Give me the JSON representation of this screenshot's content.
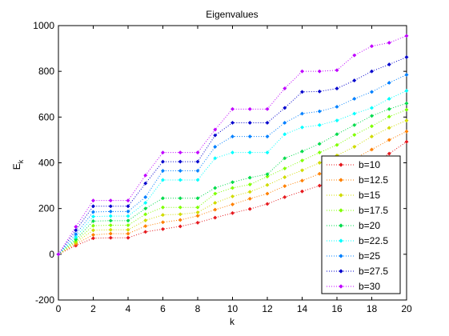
{
  "chart_data": {
    "type": "line",
    "title": "Eigenvalues",
    "xlabel": "k",
    "ylabel_main": "E",
    "ylabel_sub": "k",
    "xlim": [
      0,
      20
    ],
    "ylim": [
      -200,
      1000
    ],
    "x_ticks": [
      0,
      2,
      4,
      6,
      8,
      10,
      12,
      14,
      16,
      18,
      20
    ],
    "y_ticks": [
      -200,
      0,
      200,
      400,
      600,
      800,
      1000
    ],
    "grid": false,
    "legend_position": "lower-right",
    "line_style": "dotted with diamond markers",
    "x": [
      0,
      1,
      2,
      3,
      4,
      5,
      6,
      7,
      8,
      9,
      10,
      11,
      12,
      13,
      14,
      15,
      16,
      17,
      18,
      19,
      20
    ],
    "series": [
      {
        "name": "b=10",
        "color": "#e6191e",
        "values": [
          0,
          38,
          70,
          72,
          72,
          98,
          110,
          122,
          138,
          160,
          180,
          198,
          220,
          250,
          275,
          300,
          328,
          355,
          393,
          440,
          492
        ]
      },
      {
        "name": "b=12.5",
        "color": "#ff8000",
        "values": [
          0,
          45,
          85,
          90,
          90,
          123,
          140,
          150,
          168,
          195,
          218,
          243,
          265,
          298,
          322,
          352,
          383,
          418,
          458,
          500,
          537
        ]
      },
      {
        "name": "b=15",
        "color": "#d0dc00",
        "values": [
          0,
          52,
          105,
          107,
          107,
          148,
          172,
          175,
          183,
          225,
          253,
          273,
          303,
          337,
          367,
          400,
          432,
          470,
          515,
          553,
          585
        ]
      },
      {
        "name": "b=17.5",
        "color": "#80ff00",
        "values": [
          0,
          58,
          125,
          127,
          127,
          175,
          205,
          205,
          205,
          265,
          290,
          305,
          340,
          375,
          410,
          445,
          478,
          522,
          560,
          602,
          632
        ]
      },
      {
        "name": "b=20",
        "color": "#00dc4c",
        "values": [
          0,
          65,
          145,
          147,
          147,
          200,
          245,
          245,
          245,
          290,
          315,
          335,
          350,
          420,
          450,
          483,
          525,
          565,
          605,
          635,
          660
        ]
      },
      {
        "name": "b=22.5",
        "color": "#00ffff",
        "values": [
          0,
          75,
          165,
          167,
          167,
          225,
          325,
          325,
          325,
          420,
          445,
          445,
          445,
          525,
          555,
          565,
          585,
          615,
          640,
          680,
          715
        ]
      },
      {
        "name": "b=25",
        "color": "#0080ff",
        "values": [
          0,
          88,
          185,
          187,
          187,
          250,
          365,
          365,
          365,
          470,
          515,
          515,
          515,
          575,
          615,
          625,
          645,
          680,
          710,
          750,
          785
        ]
      },
      {
        "name": "b=27.5",
        "color": "#0000cd",
        "values": [
          0,
          105,
          210,
          210,
          210,
          310,
          405,
          405,
          405,
          520,
          575,
          575,
          575,
          640,
          710,
          712,
          725,
          760,
          800,
          830,
          862
        ]
      },
      {
        "name": "b=30",
        "color": "#c000ff",
        "values": [
          0,
          120,
          235,
          235,
          235,
          345,
          445,
          445,
          445,
          545,
          635,
          635,
          635,
          725,
          800,
          800,
          805,
          870,
          910,
          925,
          955
        ]
      }
    ]
  }
}
